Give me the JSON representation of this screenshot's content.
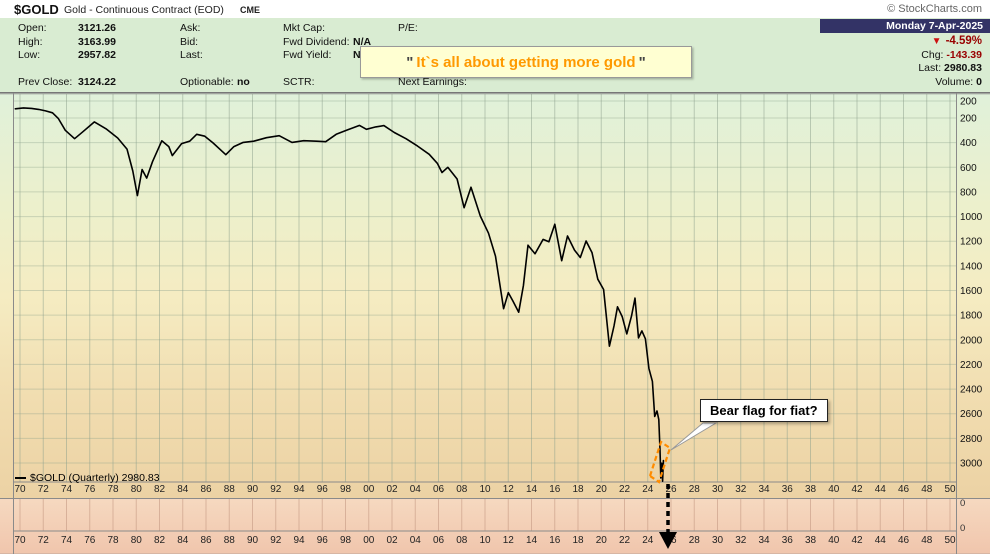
{
  "header": {
    "symbol": "$GOLD",
    "title": "Gold - Continuous Contract (EOD)",
    "exchange": "CME",
    "copyright": "© StockCharts.com",
    "date": "Monday 7-Apr-2025"
  },
  "summary": {
    "direction": "▼",
    "pct": "-4.59%",
    "chg_label": "Chg:",
    "chg": "-143.39",
    "last_label": "Last:",
    "last": "2980.83",
    "vol_label": "Volume:",
    "vol": "0"
  },
  "quote": {
    "open_label": "Open:",
    "open": "3121.26",
    "high_label": "High:",
    "high": "3163.99",
    "low_label": "Low:",
    "low": "2957.82",
    "prevclose_label": "Prev Close:",
    "prevclose": "3124.22",
    "ask_label": "Ask:",
    "bid_label": "Bid:",
    "last_label": "Last:",
    "optionable_label": "Optionable:",
    "optionable": "no",
    "mktcap_label": "Mkt Cap:",
    "fwddiv_label": "Fwd Dividend:",
    "fwddiv": "N/A",
    "fwdyield_label": "Fwd Yield:",
    "fwdyield": "N/A",
    "sctr_label": "SCTR:",
    "pe_label": "P/E:",
    "nextearn_label": "Next Earnings:"
  },
  "annotation": {
    "quote_mark": "\"",
    "text": "It`s all about getting more gold"
  },
  "chart_data": {
    "type": "line",
    "title": "$GOLD Gold - Continuous Contract (EOD) CME",
    "legend": "$GOLD (Quarterly) 2980.83",
    "y_axis_inverted": true,
    "y_range": [
      0,
      3160
    ],
    "x_range": [
      1969.5,
      2050
    ],
    "grid": true,
    "y_ticks": [
      "200",
      "200",
      "400",
      "600",
      "800",
      "1000",
      "1200",
      "1400",
      "1600",
      "1800",
      "2000",
      "2200",
      "2400",
      "2600",
      "2800",
      "3000"
    ],
    "x_ticks": [
      "70",
      "72",
      "74",
      "76",
      "78",
      "80",
      "82",
      "84",
      "86",
      "88",
      "90",
      "92",
      "94",
      "96",
      "98",
      "00",
      "02",
      "04",
      "06",
      "08",
      "10",
      "12",
      "14",
      "16",
      "18",
      "20",
      "22",
      "24",
      "26",
      "28",
      "30",
      "32",
      "34",
      "36",
      "38",
      "40",
      "42",
      "44",
      "46",
      "48",
      "50"
    ],
    "lower_y_ticks": [
      "0",
      "0"
    ],
    "series": [
      {
        "name": "$GOLD Quarterly",
        "color": "#000000",
        "last": 2980.83,
        "points": [
          [
            1969.6,
            125
          ],
          [
            1970.3,
            118
          ],
          [
            1971,
            122
          ],
          [
            1971.6,
            130
          ],
          [
            1972.2,
            142
          ],
          [
            1972.8,
            158
          ],
          [
            1973.3,
            205
          ],
          [
            1973.9,
            300
          ],
          [
            1974.7,
            368
          ],
          [
            1975.4,
            312
          ],
          [
            1976.4,
            232
          ],
          [
            1977.4,
            288
          ],
          [
            1978.4,
            362
          ],
          [
            1979.2,
            452
          ],
          [
            1979.7,
            630
          ],
          [
            1980.1,
            830
          ],
          [
            1980.5,
            618
          ],
          [
            1980.9,
            688
          ],
          [
            1981.4,
            555
          ],
          [
            1982.2,
            385
          ],
          [
            1982.8,
            432
          ],
          [
            1983.1,
            505
          ],
          [
            1983.9,
            408
          ],
          [
            1984.6,
            388
          ],
          [
            1985.2,
            332
          ],
          [
            1985.9,
            348
          ],
          [
            1986.6,
            402
          ],
          [
            1987.7,
            498
          ],
          [
            1988.4,
            432
          ],
          [
            1989.2,
            398
          ],
          [
            1990.1,
            388
          ],
          [
            1991.2,
            360
          ],
          [
            1992.3,
            344
          ],
          [
            1993.4,
            398
          ],
          [
            1994.4,
            384
          ],
          [
            1995.5,
            388
          ],
          [
            1996.3,
            392
          ],
          [
            1997.2,
            332
          ],
          [
            1998.2,
            296
          ],
          [
            1999.2,
            260
          ],
          [
            1999.8,
            292
          ],
          [
            2000.6,
            272
          ],
          [
            2001.3,
            262
          ],
          [
            2002.2,
            318
          ],
          [
            2003.2,
            368
          ],
          [
            2004.2,
            428
          ],
          [
            2005.2,
            495
          ],
          [
            2005.9,
            568
          ],
          [
            2006.3,
            642
          ],
          [
            2006.8,
            600
          ],
          [
            2007.6,
            695
          ],
          [
            2008.2,
            928
          ],
          [
            2008.8,
            762
          ],
          [
            2009.6,
            995
          ],
          [
            2010.3,
            1135
          ],
          [
            2010.9,
            1322
          ],
          [
            2011.6,
            1748
          ],
          [
            2012,
            1618
          ],
          [
            2012.4,
            1685
          ],
          [
            2012.9,
            1776
          ],
          [
            2013.3,
            1560
          ],
          [
            2013.7,
            1232
          ],
          [
            2014.3,
            1302
          ],
          [
            2015,
            1185
          ],
          [
            2015.5,
            1205
          ],
          [
            2016,
            1062
          ],
          [
            2016.6,
            1358
          ],
          [
            2017.1,
            1158
          ],
          [
            2017.7,
            1272
          ],
          [
            2018.2,
            1332
          ],
          [
            2018.7,
            1198
          ],
          [
            2019.2,
            1292
          ],
          [
            2019.7,
            1508
          ],
          [
            2020.2,
            1592
          ],
          [
            2020.7,
            2052
          ],
          [
            2021.1,
            1888
          ],
          [
            2021.4,
            1732
          ],
          [
            2021.8,
            1812
          ],
          [
            2022.2,
            1952
          ],
          [
            2022.6,
            1808
          ],
          [
            2022.9,
            1662
          ],
          [
            2023.2,
            1985
          ],
          [
            2023.5,
            1928
          ],
          [
            2023.8,
            1992
          ],
          [
            2024.1,
            2232
          ],
          [
            2024.4,
            2338
          ],
          [
            2024.6,
            2622
          ],
          [
            2024.8,
            2578
          ],
          [
            2024.95,
            2648
          ],
          [
            2025.05,
            2892
          ],
          [
            2025.12,
            3122
          ],
          [
            2025.2,
            3002
          ],
          [
            2025.28,
            3148
          ],
          [
            2025.35,
            2980.83
          ]
        ]
      }
    ],
    "annotations": {
      "bear_flag_label": "Bear flag for fiat?",
      "quote": "\"It`s all about getting more gold\""
    },
    "colors": {
      "down_red": "#990000",
      "flag_orange": "#ff8c00",
      "quote_orange": "#ff9900",
      "grid": "#8ca08c",
      "strip_bg": "#333366",
      "panel_top": "#e0f1da",
      "panel_bottom": "#ecd2a4",
      "lower_top": "#f6d9c0",
      "lower_bottom": "#f0c5ac"
    }
  }
}
